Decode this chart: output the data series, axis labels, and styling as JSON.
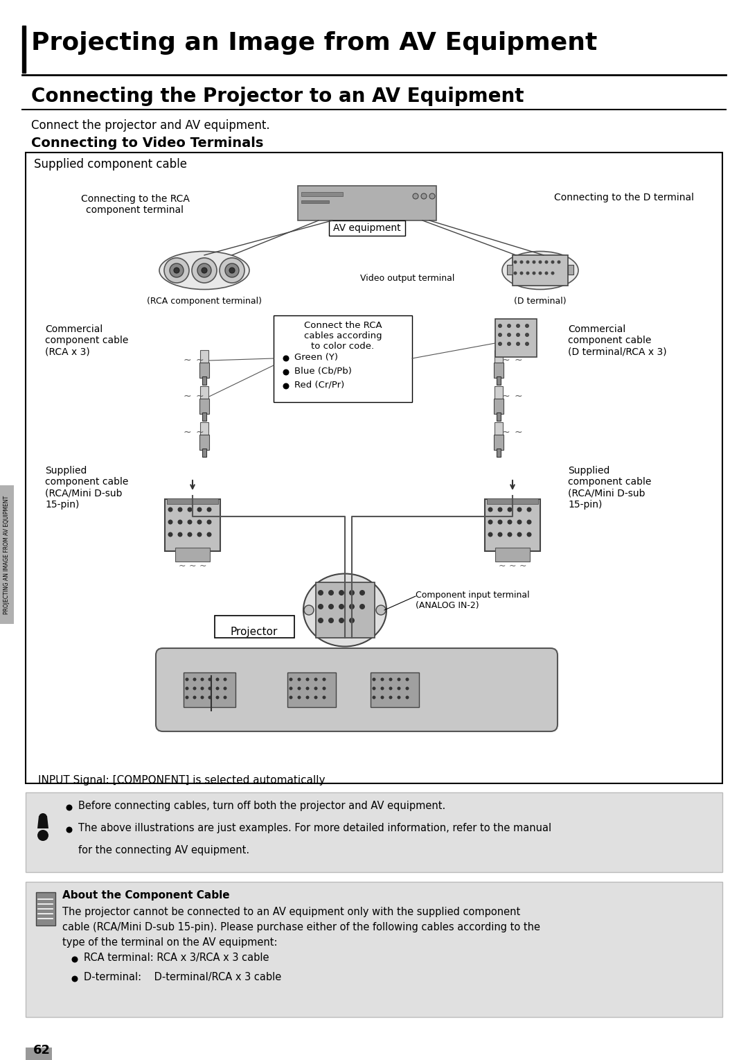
{
  "title1": "Projecting an Image from AV Equipment",
  "title2": "Connecting the Projector to an AV Equipment",
  "subtitle": "Connect the projector and AV equipment.",
  "section_title": "Connecting to Video Terminals",
  "box_title": "Supplied component cable",
  "connecting_rca": "Connecting to the RCA\ncomponent terminal",
  "connecting_d": "Connecting to the D terminal",
  "av_equipment": "AV equipment",
  "video_output": "Video output terminal",
  "rca_terminal": "(RCA component terminal)",
  "d_terminal": "(D terminal)",
  "commercial_left": "Commercial\ncomponent cable\n(RCA x 3)",
  "commercial_right": "Commercial\ncomponent cable\n(D terminal/RCA x 3)",
  "connect_rca_title": "Connect the RCA\ncables according\nto color code.",
  "green": "Green (Y)",
  "blue": "Blue (Cb/Pb)",
  "red": "Red (Cr/Pr)",
  "supplied_left": "Supplied\ncomponent cable\n(RCA/Mini D-sub\n15-pin)",
  "supplied_right": "Supplied\ncomponent cable\n(RCA/Mini D-sub\n15-pin)",
  "projector": "Projector",
  "component_input": "Component input terminal\n(ANALOG IN-2)",
  "input_signal": "INPUT Signal: [COMPONENT] is selected automatically",
  "warn1": "Before connecting cables, turn off both the projector and AV equipment.",
  "warn2": "The above illustrations are just examples. For more detailed information, refer to the manual",
  "warn3": "for the connecting AV equipment.",
  "note_title": "About the Component Cable",
  "note_body1": "The projector cannot be connected to an AV equipment only with the supplied component",
  "note_body2": "cable (RCA/Mini D-sub 15-pin). Please purchase either of the following cables according to the",
  "note_body3": "type of the terminal on the AV equipment:",
  "note_bullet1": "RCA terminal: RCA x 3/RCA x 3 cable",
  "note_bullet2": "D-terminal:    D-terminal/RCA x 3 cable",
  "page_number": "62",
  "side_text": "PROJECTING AN IMAGE FROM AV EQUIPMENT"
}
